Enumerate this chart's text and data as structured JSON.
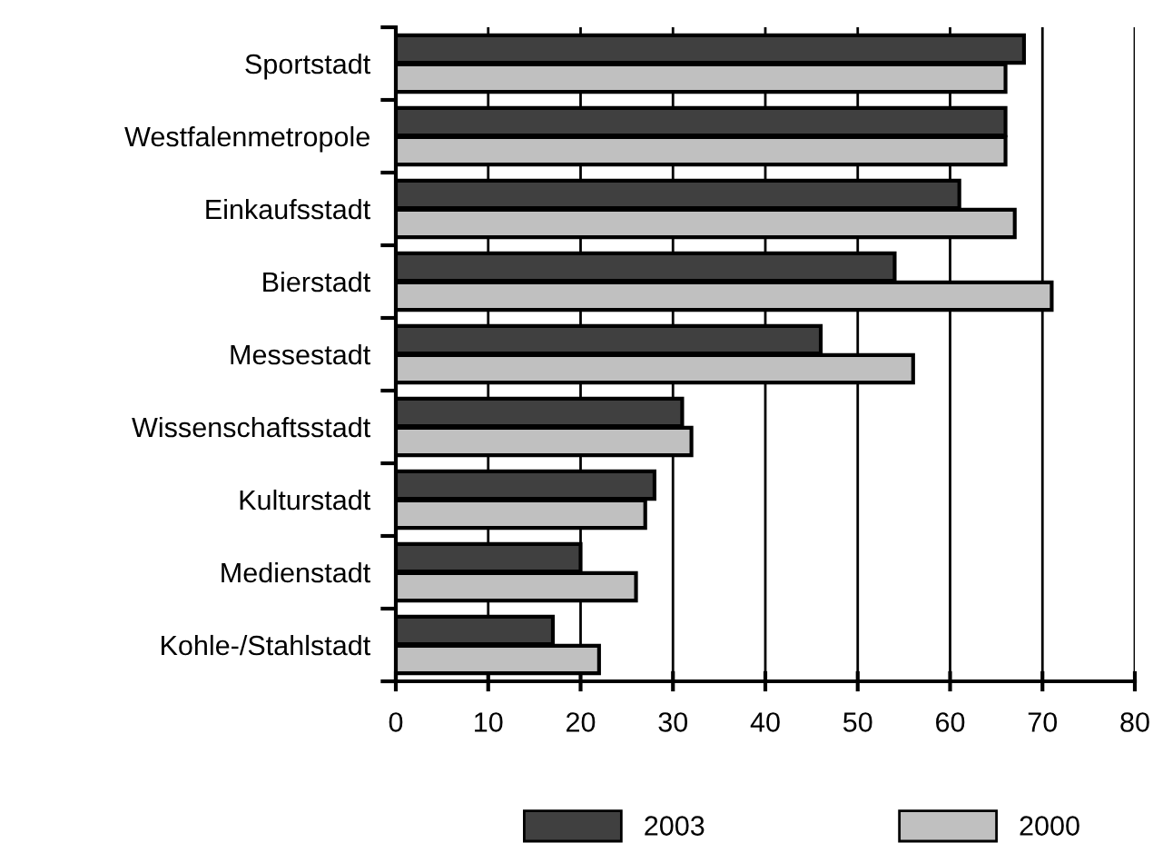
{
  "chart_data": {
    "type": "bar",
    "orientation": "horizontal",
    "categories": [
      "Sportstadt",
      "Westfalenmetropole",
      "Einkaufsstadt",
      "Bierstadt",
      "Messestadt",
      "Wissenschaftsstadt",
      "Kulturstadt",
      "Medienstadt",
      "Kohle-/Stahlstadt"
    ],
    "series": [
      {
        "name": "2003",
        "color": "#404040",
        "values": [
          68,
          66,
          61,
          54,
          46,
          31,
          28,
          20,
          17
        ]
      },
      {
        "name": "2000",
        "color": "#c0c0c0",
        "values": [
          66,
          66,
          67,
          71,
          56,
          32,
          27,
          26,
          22
        ]
      }
    ],
    "xlim": [
      0,
      80
    ],
    "xticks": [
      0,
      10,
      20,
      30,
      40,
      50,
      60,
      70,
      80
    ],
    "grid": "x",
    "legend": "bottom"
  }
}
